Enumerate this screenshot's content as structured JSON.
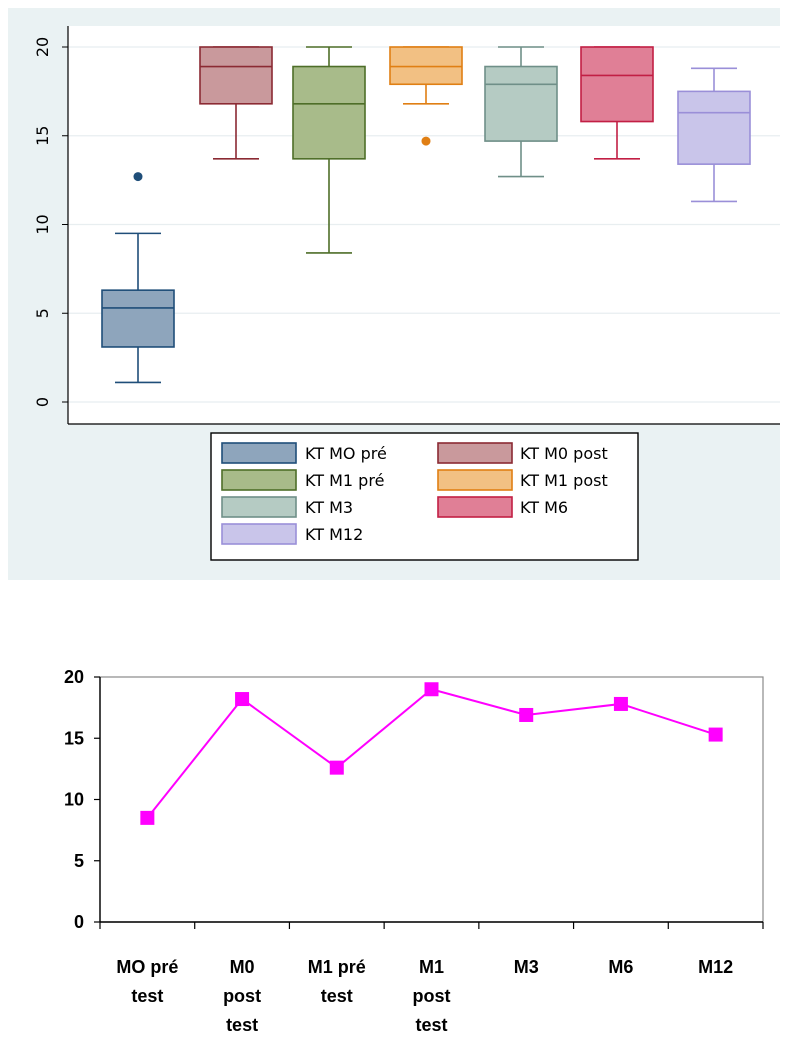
{
  "chart_data": [
    {
      "type": "box",
      "ylim": [
        0,
        20
      ],
      "yticks": [
        0,
        5,
        10,
        15,
        20
      ],
      "grid": true,
      "legend_position": "bottom",
      "series": [
        {
          "name": "KT MO pré",
          "color": "#8ea5bc",
          "stroke": "#1f4e79",
          "min": 1.1,
          "q1": 3.1,
          "median": 5.3,
          "q3": 6.3,
          "max": 9.5,
          "outliers": [
            12.7
          ]
        },
        {
          "name": "KT M0 post",
          "color": "#c9999c",
          "stroke": "#8b2a33",
          "min": 13.7,
          "q1": 16.8,
          "median": 18.9,
          "q3": 20,
          "max": 20,
          "outliers": []
        },
        {
          "name": "KT M1 pré",
          "color": "#a8bb8a",
          "stroke": "#4e6e28",
          "min": 8.4,
          "q1": 13.7,
          "median": 16.8,
          "q3": 18.9,
          "max": 20,
          "outliers": []
        },
        {
          "name": "KT M1 post",
          "color": "#f2c083",
          "stroke": "#e07f14",
          "min": 16.8,
          "q1": 17.9,
          "median": 18.9,
          "q3": 20,
          "max": 20,
          "outliers": [
            14.7
          ]
        },
        {
          "name": "KT M3",
          "color": "#b5cbc3",
          "stroke": "#6f8f88",
          "min": 12.7,
          "q1": 14.7,
          "median": 17.9,
          "q3": 18.9,
          "max": 20,
          "outliers": []
        },
        {
          "name": "KT M6",
          "color": "#e07f96",
          "stroke": "#c21f44",
          "min": 13.7,
          "q1": 15.8,
          "median": 18.4,
          "q3": 20,
          "max": 20,
          "outliers": []
        },
        {
          "name": "KT M12",
          "color": "#c9c5ea",
          "stroke": "#9a8fd8",
          "min": 11.3,
          "q1": 13.4,
          "median": 16.3,
          "q3": 17.5,
          "max": 18.8,
          "outliers": []
        }
      ],
      "legend_order": [
        0,
        1,
        2,
        3,
        4,
        5,
        6
      ]
    },
    {
      "type": "line",
      "categories": [
        [
          "MO pré",
          "test"
        ],
        [
          "M0",
          "post",
          "test"
        ],
        [
          "M1 pré",
          "test"
        ],
        [
          "M1",
          "post",
          "test"
        ],
        [
          "M3"
        ],
        [
          "M6"
        ],
        [
          "M12"
        ]
      ],
      "values": [
        8.5,
        18.2,
        12.6,
        19.0,
        16.9,
        17.8,
        15.3
      ],
      "ylim": [
        0,
        20
      ],
      "yticks": [
        0,
        5,
        10,
        15,
        20
      ],
      "color": "#ff00ff",
      "grid": false
    }
  ]
}
